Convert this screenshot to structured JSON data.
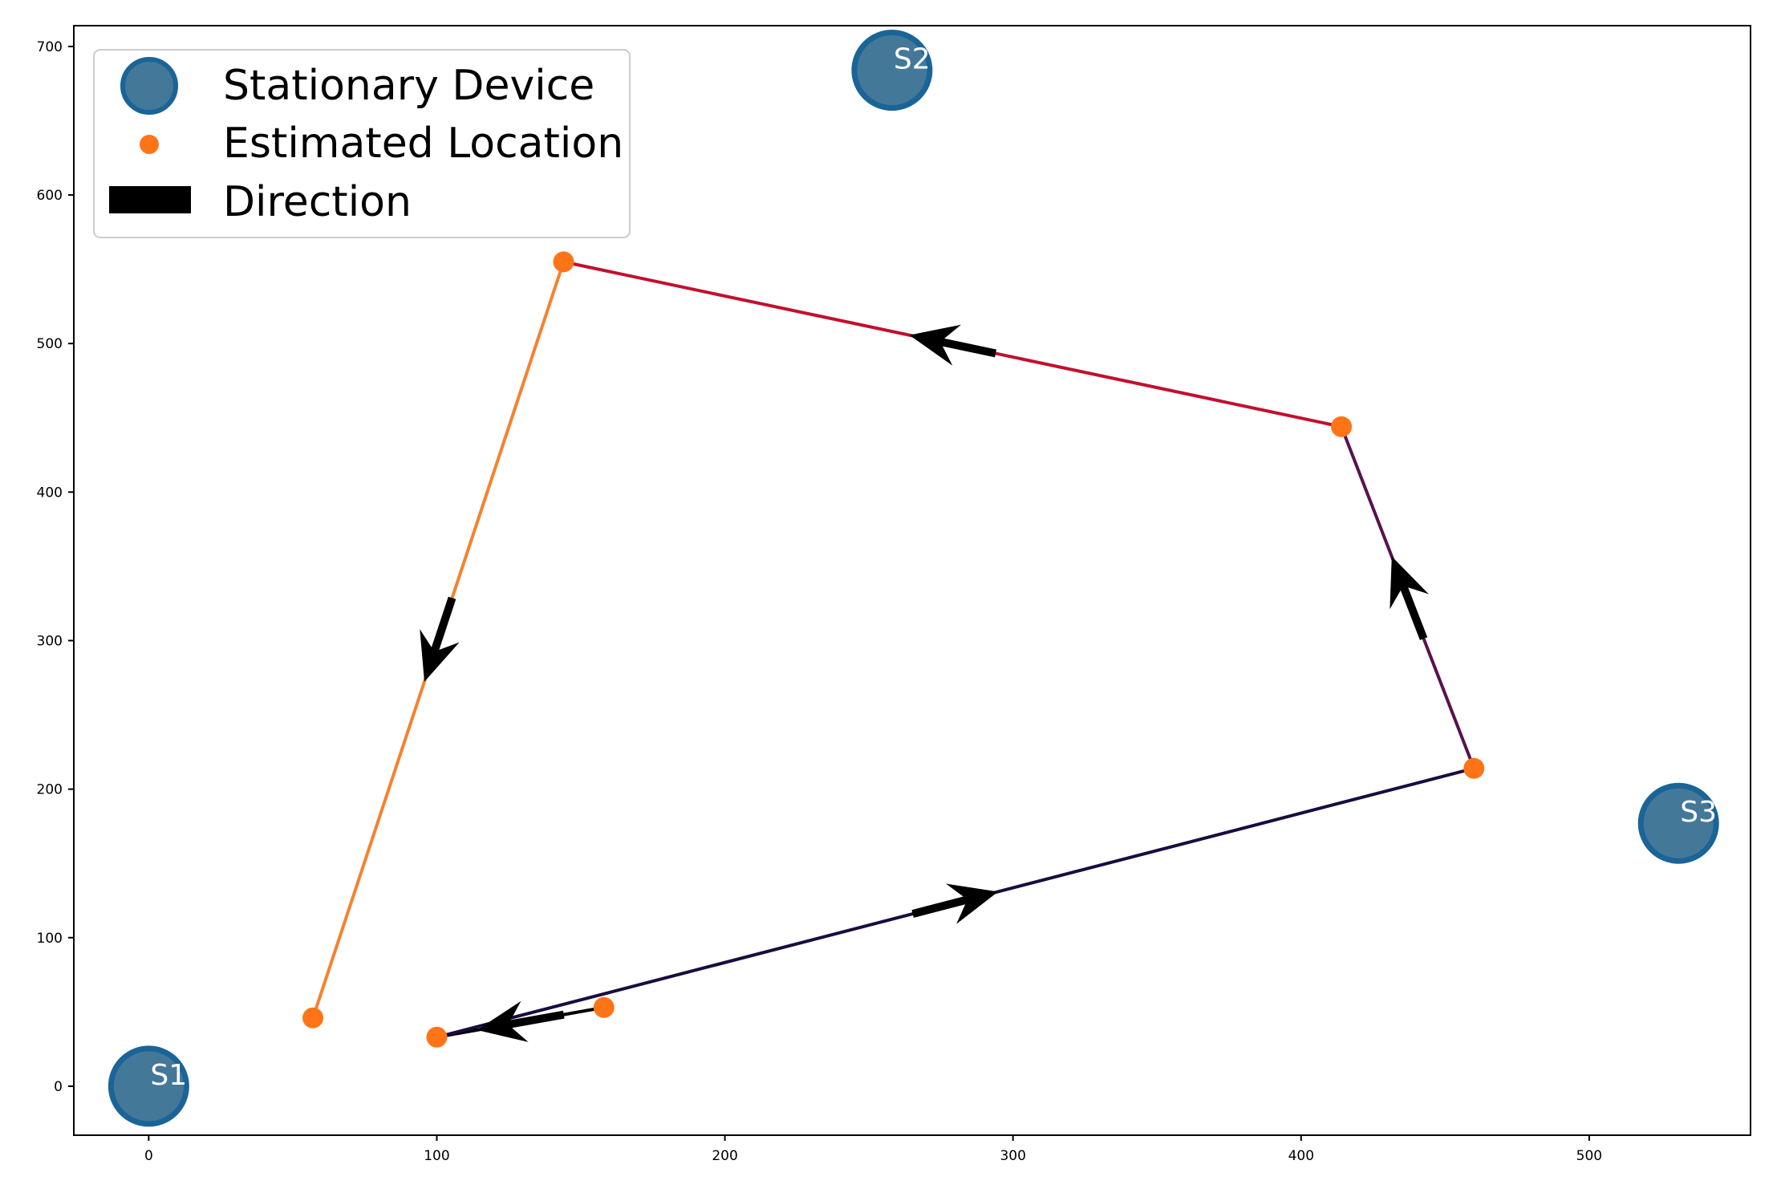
{
  "chart_data": {
    "type": "scatter",
    "title": "",
    "xlabel": "",
    "ylabel": "",
    "xlim": [
      -26,
      556
    ],
    "ylim": [
      -33,
      714
    ],
    "x_ticks": [
      0,
      100,
      200,
      300,
      400,
      500
    ],
    "y_ticks": [
      0,
      100,
      200,
      300,
      400,
      500,
      600,
      700
    ],
    "grid": false,
    "legend": {
      "position": "top-left",
      "entries": [
        {
          "label": "Stationary Device",
          "marker": "large-circle"
        },
        {
          "label": "Estimated Location",
          "marker": "small-circle"
        },
        {
          "label": "Direction",
          "marker": "arrow"
        }
      ]
    },
    "stationary_devices": [
      {
        "label": "S1",
        "x": 0,
        "y": 0
      },
      {
        "label": "S2",
        "x": 258,
        "y": 684
      },
      {
        "label": "S3",
        "x": 531,
        "y": 177
      }
    ],
    "estimated_locations": [
      {
        "x": 158,
        "y": 53
      },
      {
        "x": 100,
        "y": 33
      },
      {
        "x": 460,
        "y": 214
      },
      {
        "x": 414,
        "y": 444
      },
      {
        "x": 144,
        "y": 555
      },
      {
        "x": 57,
        "y": 46
      }
    ],
    "path_segments": [
      {
        "from": 0,
        "to": 1,
        "color": "#000000"
      },
      {
        "from": 1,
        "to": 2,
        "color": "#1a0c3e"
      },
      {
        "from": 2,
        "to": 3,
        "color": "#58124f"
      },
      {
        "from": 3,
        "to": 4,
        "color": "#c2102f"
      },
      {
        "from": 4,
        "to": 5,
        "color": "#f5822f"
      }
    ],
    "colors": {
      "stationary_fill": "#447899",
      "stationary_edge": "#1a6497",
      "location": "#ff7417",
      "arrow": "#000000"
    }
  }
}
